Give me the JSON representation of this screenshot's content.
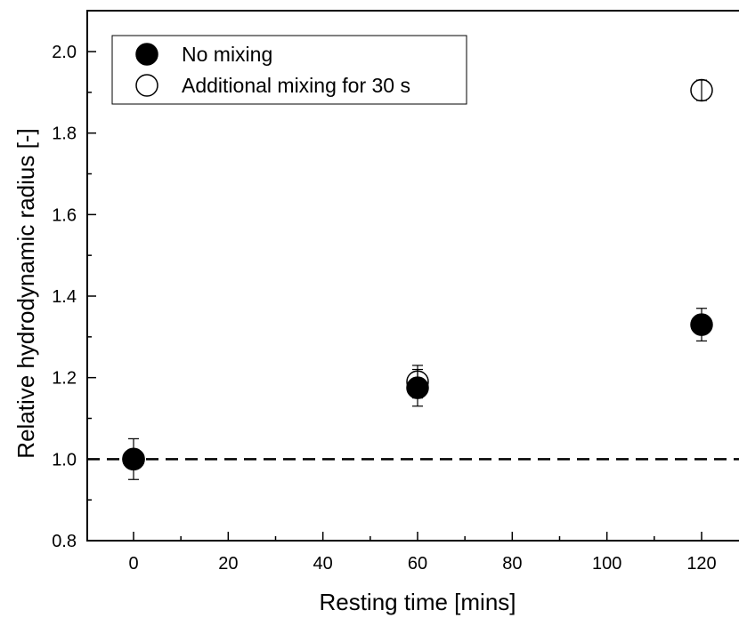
{
  "chart_data": {
    "type": "scatter",
    "title": "",
    "xlabel": "Resting time [mins]",
    "ylabel": "Relative hydrodynamic radius [-]",
    "xlim": [
      -10,
      128
    ],
    "ylim": [
      0.8,
      2.1
    ],
    "x_ticks": [
      0,
      20,
      40,
      60,
      80,
      100,
      120
    ],
    "x_tick_labels": [
      "0",
      "20",
      "40",
      "60",
      "80",
      "100",
      "120"
    ],
    "y_ticks": [
      0.8,
      1.0,
      1.2,
      1.4,
      1.6,
      1.8,
      2.0
    ],
    "y_tick_labels": [
      "0.8",
      "1.0",
      "1.2",
      "1.4",
      "1.6",
      "1.8",
      "2.0"
    ],
    "grid": false,
    "legend_position": "top-left",
    "reference_line": {
      "y": 1.0,
      "style": "dashed",
      "color": "#000000"
    },
    "series": [
      {
        "name": "No mixing",
        "marker": "filled-circle",
        "color": "#000000",
        "points": [
          {
            "x": 0,
            "y": 1.0,
            "err": 0.05
          },
          {
            "x": 60,
            "y": 1.175,
            "err": 0.045
          },
          {
            "x": 120,
            "y": 1.33,
            "err": 0.04
          }
        ]
      },
      {
        "name": "Additional mixing for 30 s",
        "marker": "open-circle",
        "color": "#000000",
        "points": [
          {
            "x": 0,
            "y": 1.0,
            "err": 0.02
          },
          {
            "x": 60,
            "y": 1.19,
            "err": 0.04
          },
          {
            "x": 120,
            "y": 1.905,
            "err": 0.025
          }
        ]
      }
    ]
  }
}
